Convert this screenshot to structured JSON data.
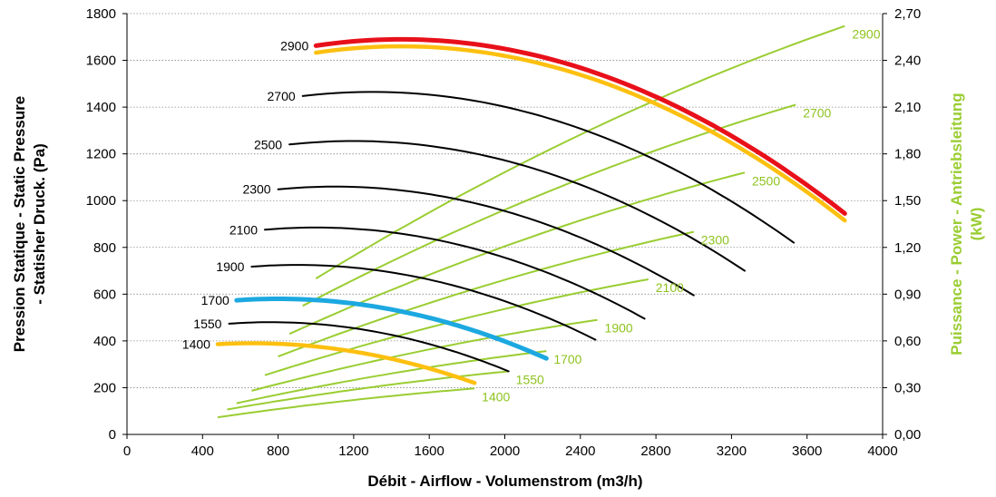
{
  "chart_data": {
    "type": "line",
    "x_axis": {
      "label": "Débit - Airflow - Volumenstrom (m3/h)",
      "range": [
        0,
        4000
      ],
      "ticks": [
        "0",
        "400",
        "800",
        "1200",
        "1600",
        "2000",
        "2400",
        "2800",
        "3200",
        "3600",
        "4000"
      ]
    },
    "y_axis_left": {
      "label_lines": [
        "Pression Statique - Static Pressure",
        "- Statisher Druck. (Pa)"
      ],
      "range": [
        0,
        1800
      ],
      "ticks": [
        "0",
        "200",
        "400",
        "600",
        "800",
        "1000",
        "1200",
        "1400",
        "1600",
        "1800"
      ]
    },
    "y_axis_right": {
      "label_lines": [
        "Puissance - Power - Antriebsleitung",
        "(kW)"
      ],
      "range": [
        0,
        2.7
      ],
      "ticks": [
        "0,00",
        "0,30",
        "0,60",
        "0,90",
        "1,20",
        "1,50",
        "1,80",
        "2,10",
        "2,40",
        "2,70"
      ]
    },
    "grid": "horizontal-dotted",
    "colors": {
      "pressure": "#000000",
      "power": "#9acd32",
      "highlight_red": "#e8101a",
      "highlight_yellow": "#fdc010",
      "highlight_blue": "#1ca8e0"
    },
    "pressure_series": [
      {
        "name": "1400",
        "x_start": 480,
        "x_end": 1840,
        "x_peak": 660,
        "y_peak": 390,
        "y_end": 220,
        "color": "#fdc010",
        "width": 4.5
      },
      {
        "name": "1550",
        "x_start": 540,
        "x_end": 2020,
        "x_peak": 760,
        "y_peak": 480,
        "y_end": 270,
        "color": "#000000",
        "width": 2
      },
      {
        "name": "1700",
        "x_start": 580,
        "x_end": 2220,
        "x_peak": 800,
        "y_peak": 580,
        "y_end": 325,
        "color": "#1ca8e0",
        "width": 5
      },
      {
        "name": "1900",
        "x_start": 660,
        "x_end": 2480,
        "x_peak": 900,
        "y_peak": 725,
        "y_end": 405,
        "color": "#000000",
        "width": 2
      },
      {
        "name": "2100",
        "x_start": 730,
        "x_end": 2740,
        "x_peak": 1000,
        "y_peak": 885,
        "y_end": 495,
        "color": "#000000",
        "width": 2
      },
      {
        "name": "2300",
        "x_start": 800,
        "x_end": 3000,
        "x_peak": 1100,
        "y_peak": 1060,
        "y_end": 595,
        "color": "#000000",
        "width": 2
      },
      {
        "name": "2500",
        "x_start": 860,
        "x_end": 3270,
        "x_peak": 1200,
        "y_peak": 1255,
        "y_end": 700,
        "color": "#000000",
        "width": 2
      },
      {
        "name": "2700",
        "x_start": 930,
        "x_end": 3530,
        "x_peak": 1300,
        "y_peak": 1465,
        "y_end": 820,
        "color": "#000000",
        "width": 2
      },
      {
        "name": "2900",
        "x_start": 1000,
        "x_end": 3800,
        "x_peak": 1450,
        "y_peak": 1690,
        "y_end": 945,
        "color": "#e8101a",
        "width": 5
      }
    ],
    "pressure_overlay": {
      "name": "2900",
      "x_start": 1000,
      "x_end": 3800,
      "x_peak": 1450,
      "y_peak": 1660,
      "y_end": 915,
      "color": "#fdc010",
      "width": 4.5
    },
    "power_series": [
      {
        "name": "1400",
        "x_start": 480,
        "y_start": 0.11,
        "x_end": 1840,
        "y_end": 0.295
      },
      {
        "name": "1550",
        "x_start": 530,
        "y_start": 0.16,
        "x_end": 2020,
        "y_end": 0.405
      },
      {
        "name": "1700",
        "x_start": 580,
        "y_start": 0.2,
        "x_end": 2220,
        "y_end": 0.535
      },
      {
        "name": "1900",
        "x_start": 660,
        "y_start": 0.28,
        "x_end": 2490,
        "y_end": 0.735
      },
      {
        "name": "2100",
        "x_start": 730,
        "y_start": 0.38,
        "x_end": 2760,
        "y_end": 0.995
      },
      {
        "name": "2300",
        "x_start": 800,
        "y_start": 0.5,
        "x_end": 3000,
        "y_end": 1.3
      },
      {
        "name": "2500",
        "x_start": 860,
        "y_start": 0.645,
        "x_end": 3270,
        "y_end": 1.68
      },
      {
        "name": "2700",
        "x_start": 930,
        "y_start": 0.825,
        "x_end": 3540,
        "y_end": 2.115
      },
      {
        "name": "2900",
        "x_start": 1000,
        "y_start": 1.0,
        "x_end": 3800,
        "y_end": 2.62
      }
    ]
  }
}
